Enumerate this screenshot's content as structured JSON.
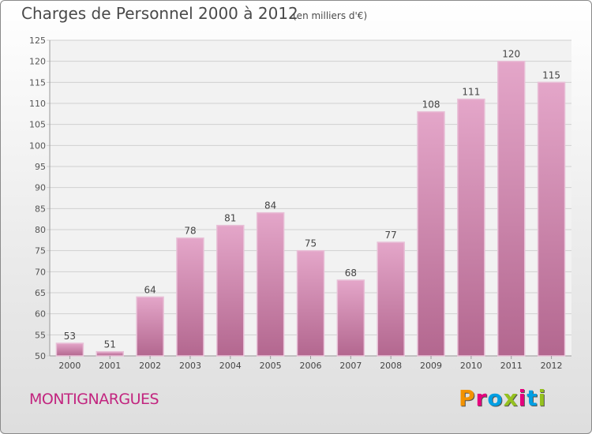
{
  "header": {
    "title": "Charges de Personnel 2000 à 2012",
    "subtitle": "(en milliers d'€)"
  },
  "footer": {
    "commune": "MONTIGNARGUES",
    "brand": "Proxiti"
  },
  "colors": {
    "bar": "#d98fba",
    "commune_text": "#c2257f",
    "logo": [
      "#f39200",
      "#e6007e",
      "#009fe3",
      "#95c11f",
      "#e6007e",
      "#009fe3",
      "#95c11f"
    ]
  },
  "chart_data": {
    "type": "bar",
    "categories": [
      "2000",
      "2001",
      "2002",
      "2003",
      "2004",
      "2005",
      "2006",
      "2007",
      "2008",
      "2009",
      "2010",
      "2011",
      "2012"
    ],
    "values": [
      53,
      51,
      64,
      78,
      81,
      84,
      75,
      68,
      77,
      108,
      111,
      120,
      115
    ],
    "data_labels": [
      "53",
      "51",
      "64",
      "78",
      "81",
      "84",
      "75",
      "68",
      "77",
      "108",
      "111",
      "120",
      "115"
    ],
    "ylim": [
      50,
      125
    ],
    "yticks": [
      50,
      55,
      60,
      65,
      70,
      75,
      80,
      85,
      90,
      95,
      100,
      105,
      110,
      115,
      120,
      125
    ],
    "xlabel": "",
    "ylabel": "",
    "grid": true
  }
}
